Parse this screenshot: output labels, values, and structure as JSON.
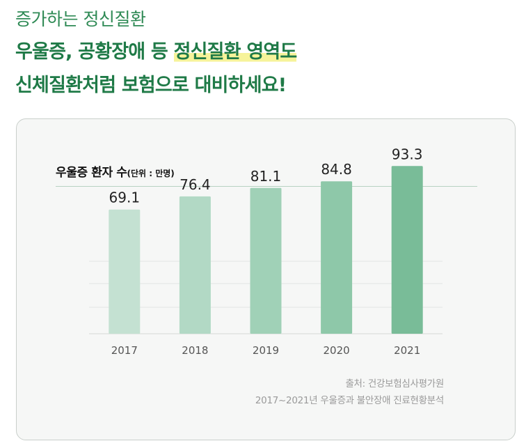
{
  "header": {
    "eyebrow": "증가하는 정신질환",
    "line1_pre": "우울증, 공황장애 등 ",
    "line1_highlight": "정신질환 영역도",
    "line2": "신체질환처럼 보험으로 대비하세요!"
  },
  "chart_data": {
    "type": "bar",
    "title": "우울증 환자 수",
    "unit": "(단위 : 만명)",
    "categories": [
      "2017",
      "2018",
      "2019",
      "2020",
      "2021"
    ],
    "values": [
      69.1,
      76.4,
      81.1,
      84.8,
      93.3
    ],
    "value_labels": [
      "69.1",
      "76.4",
      "81.1",
      "84.8",
      "93.3"
    ],
    "colors": [
      "#c4e1d2",
      "#b2d9c5",
      "#a0d1b7",
      "#8ec8a9",
      "#79bc98"
    ],
    "grid": true,
    "legend": "none"
  },
  "source": {
    "line1": "출처: 건강보험심사평가원",
    "line2": "2017~2021년 우울증과 불안장애 진료현황분석"
  }
}
